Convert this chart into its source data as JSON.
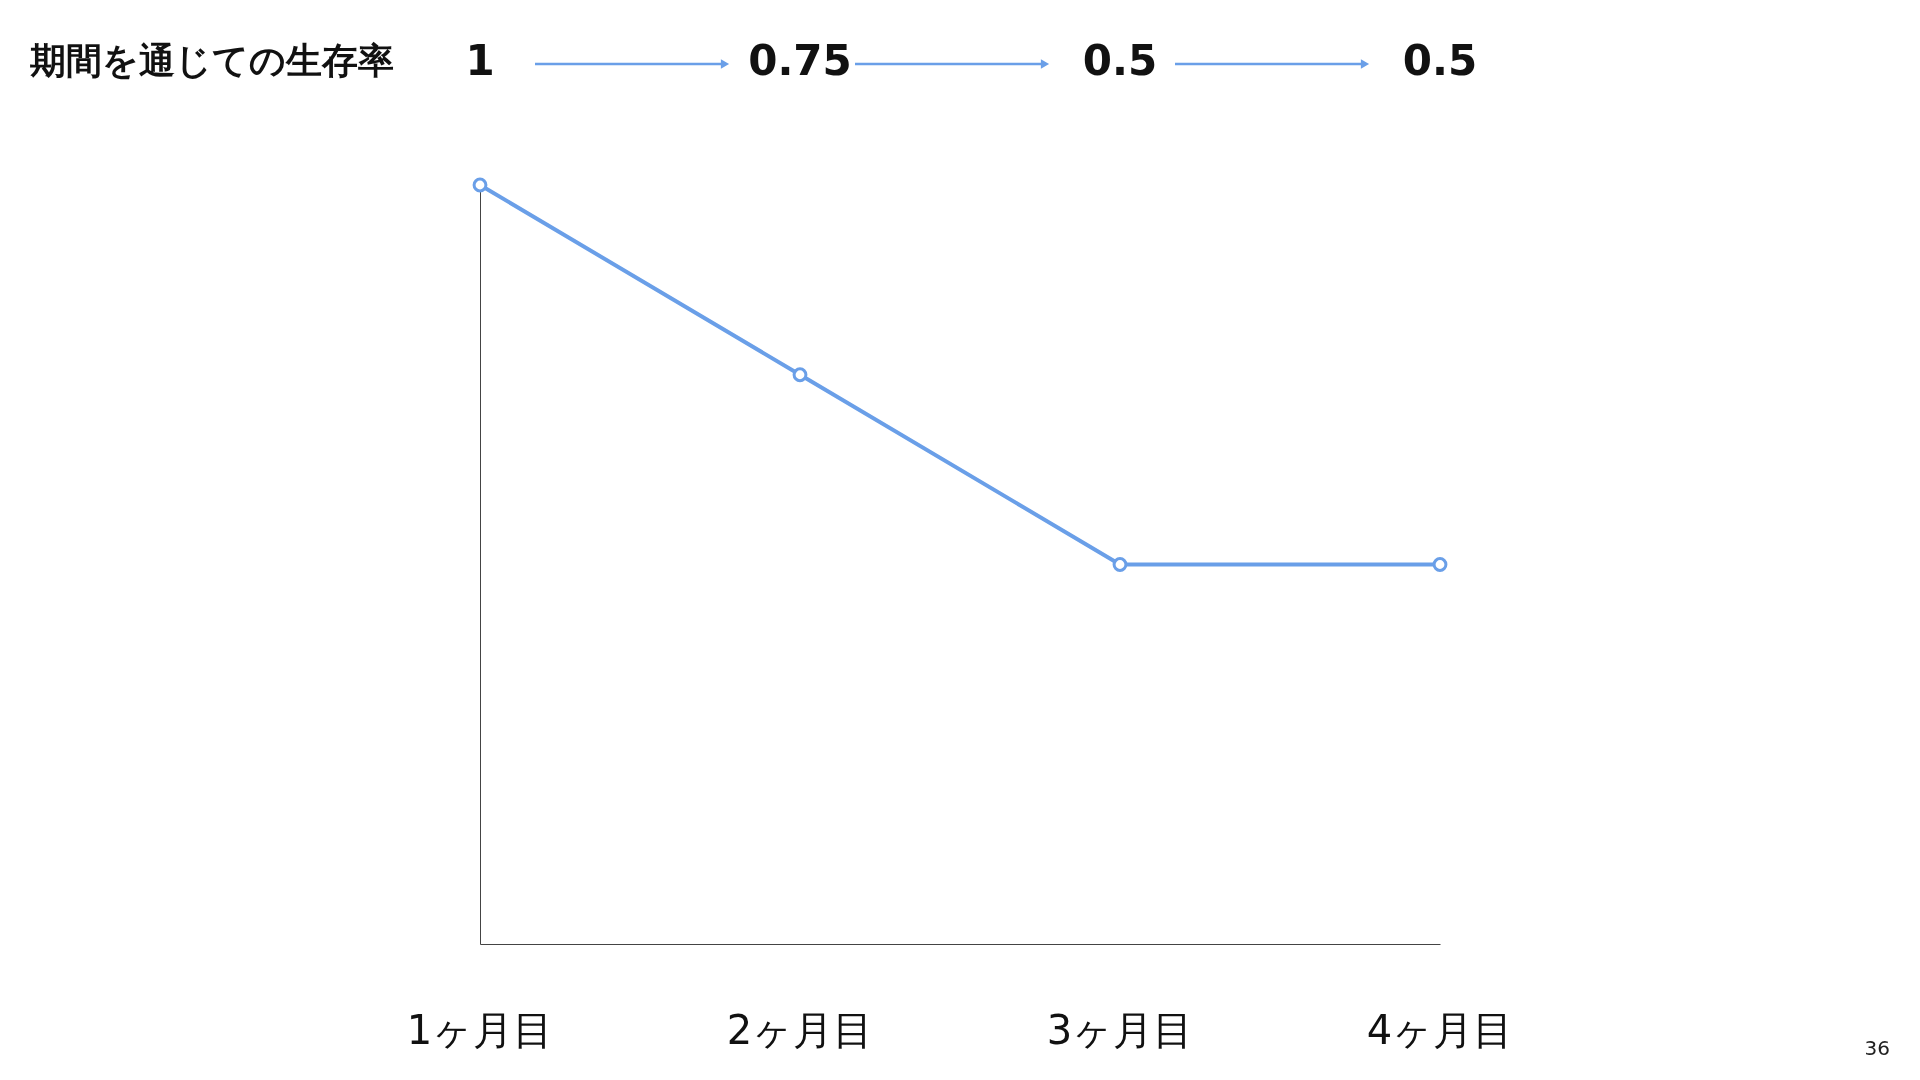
{
  "chart_data": {
    "type": "line",
    "title": "期間を通じての生存率",
    "categories": [
      "1ヶ月目",
      "2ヶ月目",
      "3ヶ月目",
      "4ヶ月目"
    ],
    "series": [
      {
        "color": "#6a9fe8",
        "values": [
          1,
          0.75,
          0.5,
          0.5
        ]
      }
    ],
    "ylim": [
      0,
      1
    ],
    "data_labels": true,
    "marker": "circle",
    "line_style": "solid",
    "grid": false,
    "annotations": [
      "36"
    ]
  }
}
